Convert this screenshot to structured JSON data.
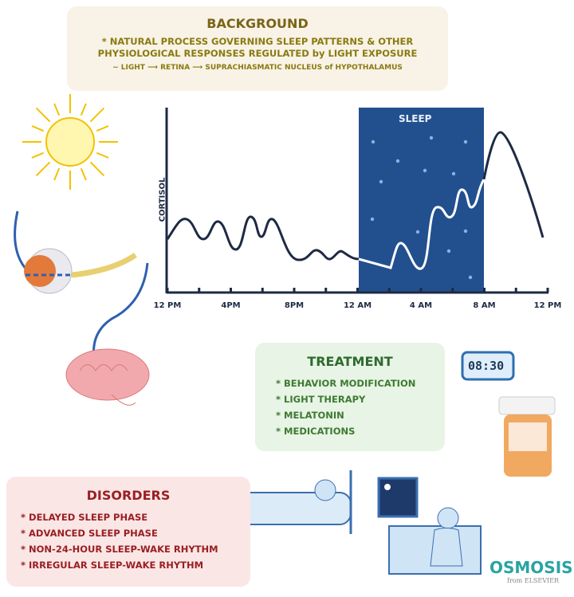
{
  "background": {
    "title": "BACKGROUND",
    "bullet": "* NATURAL PROCESS GOVERNING SLEEP PATTERNS & OTHER",
    "bullet_cont": "PHYSIOLOGICAL RESPONSES REGULATED by LIGHT EXPOSURE",
    "pathway": "~ LIGHT ⟶ RETINA ⟶ SUPRACHIASMATIC NUCLEUS of HYPOTHALAMUS"
  },
  "graph": {
    "ylabel": "CORTISOL",
    "sleep_label": "SLEEP",
    "x_ticks": [
      "12 PM",
      "4PM",
      "8PM",
      "12 AM",
      "4 AM",
      "8 AM",
      "12 PM"
    ],
    "sleep_color": "#22508f",
    "line_color": "#1e2a44"
  },
  "treatment": {
    "title": "TREATMENT",
    "items": [
      "* BEHAVIOR MODIFICATION",
      "* LIGHT THERAPY",
      "* MELATONIN",
      "* MEDICATIONS"
    ]
  },
  "disorders": {
    "title": "DISORDERS",
    "items": [
      "* DELAYED SLEEP PHASE",
      "* ADVANCED SLEEP PHASE",
      "* NON-24-HOUR SLEEP-WAKE RHYTHM",
      "* IRREGULAR SLEEP-WAKE RHYTHM"
    ]
  },
  "clock": {
    "time": "08:30"
  },
  "logo": {
    "name": "OSMOSIS",
    "sub": "from ELSEVIER"
  }
}
